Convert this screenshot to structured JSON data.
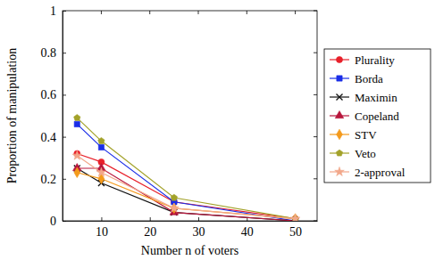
{
  "chart_data": {
    "type": "line",
    "x_label": "Number n of voters",
    "y_label": "Proportion of manipulation",
    "x": [
      5,
      10,
      25,
      50
    ],
    "xlim": [
      2,
      54.5
    ],
    "xticks": [
      10,
      20,
      30,
      40,
      50
    ],
    "ylim": [
      0,
      1
    ],
    "yticks": [
      0,
      0.2,
      0.4,
      0.6,
      0.8,
      1
    ],
    "grid": false,
    "legend": "right",
    "series": [
      {
        "name": "Plurality",
        "color": "#e8202a",
        "marker": "circle",
        "values": [
          0.32,
          0.28,
          0.09,
          0.01
        ]
      },
      {
        "name": "Borda",
        "color": "#1a2ee8",
        "marker": "square",
        "values": [
          0.46,
          0.35,
          0.09,
          0.0
        ]
      },
      {
        "name": "Maximin",
        "color": "#111111",
        "marker": "cross",
        "values": [
          0.25,
          0.18,
          0.04,
          0.0
        ]
      },
      {
        "name": "Copeland",
        "color": "#b8163c",
        "marker": "triangle",
        "values": [
          0.25,
          0.25,
          0.04,
          0.0
        ]
      },
      {
        "name": "STV",
        "color": "#f49a1c",
        "marker": "diamond",
        "values": [
          0.23,
          0.2,
          0.06,
          0.01
        ]
      },
      {
        "name": "Veto",
        "color": "#a3a22a",
        "marker": "pentagon",
        "values": [
          0.49,
          0.38,
          0.11,
          0.01
        ]
      },
      {
        "name": "2-approval",
        "color": "#f2a78a",
        "marker": "star",
        "values": [
          0.31,
          0.23,
          0.06,
          0.01
        ]
      }
    ]
  }
}
